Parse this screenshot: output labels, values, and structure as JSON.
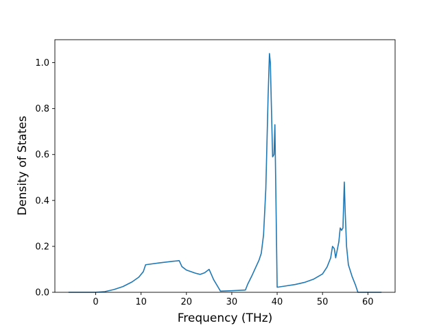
{
  "chart_data": {
    "type": "line",
    "title": "",
    "xlabel": "Frequency (THz)",
    "ylabel": "Density of States",
    "xlim": [
      -9,
      66
    ],
    "ylim": [
      0,
      1.1
    ],
    "xticks": [
      0,
      10,
      20,
      30,
      40,
      50,
      60
    ],
    "yticks": [
      0.0,
      0.2,
      0.4,
      0.6,
      0.8,
      1.0
    ],
    "xtick_labels": [
      "0",
      "10",
      "20",
      "30",
      "40",
      "50",
      "60"
    ],
    "ytick_labels": [
      "0.0",
      "0.2",
      "0.4",
      "0.6",
      "0.8",
      "1.0"
    ],
    "grid": false,
    "legend": "none",
    "colors": {
      "line": "#1f77b4",
      "axes": "#000000",
      "background": "#ffffff"
    },
    "series": [
      {
        "x": [
          -6,
          -2,
          0,
          2,
          4,
          6,
          8,
          9.5,
          10.5,
          11,
          14,
          17,
          18,
          18.4,
          19,
          20,
          22,
          23,
          24,
          25,
          26,
          27,
          27.5,
          30,
          33,
          33.5,
          34.5,
          36,
          36.5,
          37,
          37.5,
          38,
          38.3,
          38.5,
          38.8,
          39,
          39.3,
          39.5,
          39.7,
          40,
          42,
          44,
          46,
          48,
          50,
          51,
          51.8,
          52.2,
          52.6,
          52.9,
          53.2,
          53.6,
          53.9,
          54.2,
          54.5,
          54.8,
          55,
          55.3,
          55.7,
          56.5,
          57.3,
          57.8,
          63
        ],
        "y": [
          0,
          0,
          0,
          0.003,
          0.012,
          0.025,
          0.045,
          0.066,
          0.09,
          0.12,
          0.128,
          0.135,
          0.137,
          0.138,
          0.112,
          0.097,
          0.083,
          0.078,
          0.085,
          0.1,
          0.055,
          0.022,
          0.005,
          0.007,
          0.01,
          0.035,
          0.075,
          0.14,
          0.17,
          0.25,
          0.45,
          0.85,
          1.04,
          1.0,
          0.75,
          0.59,
          0.6,
          0.73,
          0.45,
          0.022,
          0.028,
          0.034,
          0.043,
          0.057,
          0.08,
          0.11,
          0.15,
          0.2,
          0.19,
          0.15,
          0.18,
          0.22,
          0.28,
          0.27,
          0.28,
          0.48,
          0.35,
          0.2,
          0.12,
          0.07,
          0.03,
          0,
          0
        ]
      }
    ]
  }
}
